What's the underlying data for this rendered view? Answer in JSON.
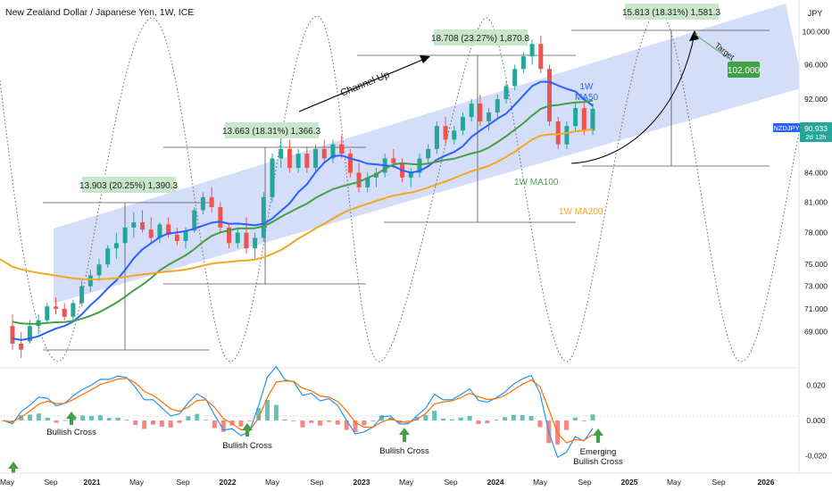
{
  "header": {
    "title": "New Zealand Dollar / Japanese Yen, 1W, ICE",
    "currency": "JPY"
  },
  "price_tag": {
    "symbol": "NZDJPY",
    "value": "90.933",
    "countdown": "2d 12h"
  },
  "colors": {
    "up": "#26a69a",
    "down": "#ef5350",
    "ma50": "#2962ff",
    "ma100": "#43a047",
    "ma200": "#f5a623",
    "channel": "#c5d3f7",
    "macd": "#2196f3",
    "signal": "#ff6d00",
    "box": "#c8e6c9"
  },
  "chart_data": [
    {
      "type": "candlestick",
      "title": "New Zealand Dollar / Japanese Yen, 1W, ICE",
      "y_ticks": [
        "100.000",
        "96.000",
        "92.000",
        "88.000",
        "84.000",
        "81.000",
        "78.000",
        "75.000",
        "73.000",
        "71.000",
        "69.000"
      ],
      "x_ticks": [
        "May",
        "Sep",
        "2021",
        "May",
        "Sep",
        "2022",
        "May",
        "Sep",
        "2023",
        "May",
        "Sep",
        "2024",
        "May",
        "Sep",
        "2025",
        "May",
        "Sep",
        "2026"
      ],
      "ylim": [
        66,
        104
      ],
      "y_scale": "log",
      "ohlc_weekly_approx": [
        [
          69.5,
          70.5,
          67.5,
          68.0
        ],
        [
          68.0,
          69.0,
          66.8,
          67.5
        ],
        [
          68.2,
          70.0,
          68.0,
          69.5
        ],
        [
          69.5,
          70.5,
          68.8,
          70.0
        ],
        [
          70.0,
          71.5,
          69.8,
          71.2
        ],
        [
          71.2,
          72.0,
          70.5,
          71.0
        ],
        [
          71.0,
          71.5,
          70.0,
          70.3
        ],
        [
          70.3,
          71.8,
          70.0,
          71.5
        ],
        [
          71.5,
          73.5,
          71.2,
          73.0
        ],
        [
          73.0,
          74.5,
          72.5,
          74.0
        ],
        [
          74.0,
          75.5,
          73.5,
          75.0
        ],
        [
          75.0,
          76.8,
          74.7,
          76.5
        ],
        [
          76.5,
          78.0,
          75.5,
          77.0
        ],
        [
          77.0,
          79.0,
          76.8,
          78.5
        ],
        [
          78.5,
          80.0,
          77.5,
          79.0
        ],
        [
          79.0,
          80.2,
          78.0,
          78.3
        ],
        [
          78.3,
          79.5,
          77.0,
          77.5
        ],
        [
          77.5,
          79.0,
          77.0,
          78.8
        ],
        [
          78.8,
          79.5,
          77.5,
          77.8
        ],
        [
          77.8,
          78.5,
          76.8,
          77.2
        ],
        [
          77.2,
          78.5,
          76.5,
          78.2
        ],
        [
          78.2,
          80.5,
          78.0,
          80.2
        ],
        [
          80.2,
          82.0,
          79.8,
          81.5
        ],
        [
          81.5,
          82.5,
          80.0,
          80.5
        ],
        [
          80.5,
          81.0,
          78.0,
          78.5
        ],
        [
          78.5,
          79.0,
          76.5,
          77.0
        ],
        [
          77.0,
          78.5,
          76.5,
          78.0
        ],
        [
          78.0,
          79.5,
          76.0,
          76.5
        ],
        [
          76.5,
          78.0,
          75.5,
          77.5
        ],
        [
          77.5,
          82.0,
          77.2,
          81.5
        ],
        [
          81.5,
          86.0,
          81.0,
          85.5
        ],
        [
          85.5,
          87.5,
          84.5,
          86.5
        ],
        [
          86.5,
          87.5,
          84.0,
          84.5
        ],
        [
          84.5,
          86.5,
          84.0,
          86.0
        ],
        [
          86.0,
          86.8,
          84.0,
          84.5
        ],
        [
          84.5,
          87.0,
          84.0,
          86.5
        ],
        [
          86.5,
          87.5,
          85.0,
          85.5
        ],
        [
          85.5,
          87.5,
          85.0,
          87.0
        ],
        [
          87.0,
          88.0,
          85.5,
          86.0
        ],
        [
          86.0,
          86.5,
          83.5,
          84.0
        ],
        [
          84.0,
          85.0,
          82.0,
          82.5
        ],
        [
          82.5,
          84.0,
          82.0,
          83.5
        ],
        [
          83.5,
          84.5,
          82.5,
          84.0
        ],
        [
          84.0,
          86.0,
          83.5,
          85.5
        ],
        [
          85.5,
          86.5,
          84.5,
          85.0
        ],
        [
          85.0,
          85.5,
          83.0,
          83.5
        ],
        [
          83.5,
          84.5,
          82.5,
          84.0
        ],
        [
          84.0,
          86.0,
          83.5,
          85.5
        ],
        [
          85.5,
          87.0,
          85.0,
          86.5
        ],
        [
          86.5,
          89.5,
          86.0,
          89.0
        ],
        [
          89.0,
          90.0,
          87.0,
          87.5
        ],
        [
          87.5,
          89.0,
          87.0,
          88.5
        ],
        [
          88.5,
          90.5,
          88.0,
          90.0
        ],
        [
          90.0,
          92.0,
          89.5,
          91.5
        ],
        [
          91.5,
          92.5,
          89.0,
          89.5
        ],
        [
          89.5,
          91.0,
          88.5,
          90.5
        ],
        [
          90.5,
          92.5,
          90.0,
          92.0
        ],
        [
          92.0,
          94.0,
          91.5,
          93.5
        ],
        [
          93.5,
          96.0,
          93.0,
          95.5
        ],
        [
          95.5,
          97.5,
          95.0,
          97.0
        ],
        [
          97.0,
          99.0,
          96.0,
          98.5
        ],
        [
          98.5,
          99.5,
          95.0,
          95.5
        ],
        [
          95.5,
          96.0,
          89.0,
          89.5
        ],
        [
          89.5,
          90.0,
          86.5,
          87.0
        ],
        [
          87.0,
          89.5,
          86.5,
          89.0
        ],
        [
          89.0,
          91.5,
          88.5,
          91.0
        ],
        [
          91.0,
          92.0,
          88.0,
          88.5
        ],
        [
          88.5,
          91.5,
          88.0,
          90.9
        ]
      ],
      "series": [
        {
          "name": "1W MA50"
        },
        {
          "name": "1W MA100"
        },
        {
          "name": "1W MA200"
        }
      ],
      "annotations": [
        {
          "text": "13.903 (20.25%) 1,390.3"
        },
        {
          "text": "13.663 (18.31%) 1,366.3"
        },
        {
          "text": "18.708 (23.27%) 1,870.8"
        },
        {
          "text": "15.813 (18.31%) 1,581.3"
        },
        {
          "text": "Channel Up"
        },
        {
          "text": "1W\nMA50"
        },
        {
          "text": "1W MA100"
        },
        {
          "text": "1W MA200"
        },
        {
          "text": "Target"
        },
        {
          "text": "102.000"
        }
      ],
      "current_price": 90.933
    },
    {
      "type": "bar",
      "title": "",
      "y_ticks": [
        "0.020",
        "0.000",
        "-0.020"
      ],
      "ylim": [
        -0.03,
        0.03
      ],
      "series": [
        {
          "name": ""
        },
        {
          "name": ""
        }
      ],
      "annotations": [
        {
          "text": "Bullish Cross"
        },
        {
          "text": "Bullish Cross"
        },
        {
          "text": "Bullish Cross"
        },
        {
          "text": "Emerging\nBullish Cross"
        }
      ]
    }
  ]
}
